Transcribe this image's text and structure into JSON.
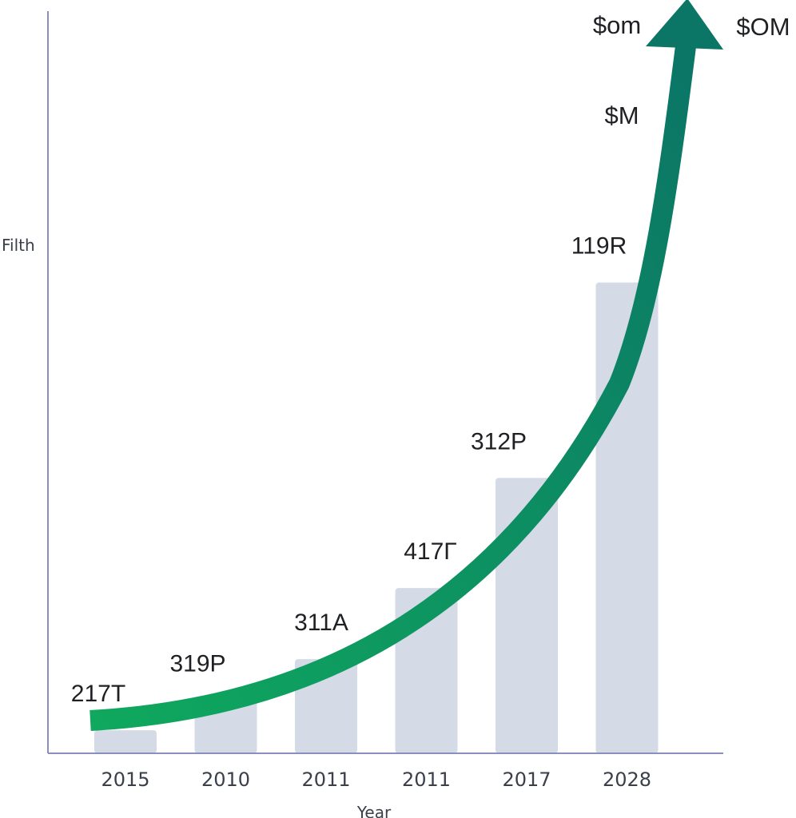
{
  "chart_data": {
    "type": "bar",
    "categories": [
      "2015",
      "2010",
      "2011",
      "2011",
      "2017",
      "2028"
    ],
    "values": [
      13,
      30,
      53,
      93,
      155,
      265
    ],
    "value_labels": [
      "217T",
      "319P",
      "311A",
      "417Γ",
      "312P",
      "119R"
    ],
    "ylim": [
      0,
      415
    ],
    "xlabel": "Year",
    "ylabel": "Filth",
    "trend_labels": [
      "$om",
      "$OM",
      "$M"
    ],
    "grid": false,
    "colors": {
      "bar": "#d4dbe7",
      "axis": "#8a8fc0",
      "trend_start": "#0fa85e",
      "trend_end": "#0b7566"
    }
  }
}
